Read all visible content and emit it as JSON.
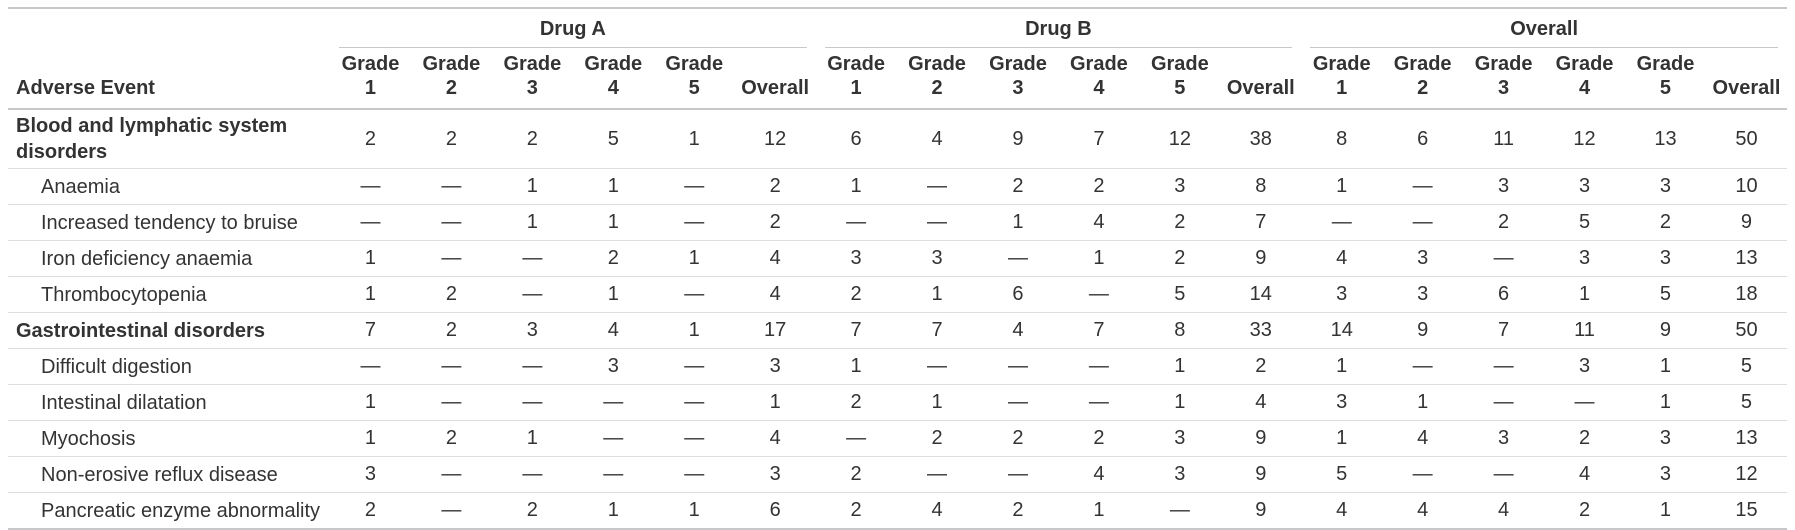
{
  "colors": {
    "text": "#333333",
    "border_strong": "#c6c8ca",
    "border_light": "#dcdee0"
  },
  "chart_data": {
    "type": "table",
    "row_header": "Adverse Event",
    "empty_value": "—",
    "column_groups": [
      {
        "label": "Drug A"
      },
      {
        "label": "Drug B"
      },
      {
        "label": "Overall"
      }
    ],
    "sub_columns": [
      {
        "top": "Grade",
        "bottom": "1"
      },
      {
        "top": "Grade",
        "bottom": "2"
      },
      {
        "top": "Grade",
        "bottom": "3"
      },
      {
        "top": "Grade",
        "bottom": "4"
      },
      {
        "top": "Grade",
        "bottom": "5"
      },
      {
        "top": "",
        "bottom": "Overall"
      }
    ],
    "rows": [
      {
        "label": "Blood and lymphatic system disorders",
        "bold": true,
        "indent": false,
        "drug_a": [
          "2",
          "2",
          "2",
          "5",
          "1",
          "12"
        ],
        "drug_b": [
          "6",
          "4",
          "9",
          "7",
          "12",
          "38"
        ],
        "overall": [
          "8",
          "6",
          "11",
          "12",
          "13",
          "50"
        ]
      },
      {
        "label": "Anaemia",
        "bold": false,
        "indent": true,
        "drug_a": [
          "—",
          "—",
          "1",
          "1",
          "—",
          "2"
        ],
        "drug_b": [
          "1",
          "—",
          "2",
          "2",
          "3",
          "8"
        ],
        "overall": [
          "1",
          "—",
          "3",
          "3",
          "3",
          "10"
        ]
      },
      {
        "label": "Increased tendency to bruise",
        "bold": false,
        "indent": true,
        "drug_a": [
          "—",
          "—",
          "1",
          "1",
          "—",
          "2"
        ],
        "drug_b": [
          "—",
          "—",
          "1",
          "4",
          "2",
          "7"
        ],
        "overall": [
          "—",
          "—",
          "2",
          "5",
          "2",
          "9"
        ]
      },
      {
        "label": "Iron deficiency anaemia",
        "bold": false,
        "indent": true,
        "drug_a": [
          "1",
          "—",
          "—",
          "2",
          "1",
          "4"
        ],
        "drug_b": [
          "3",
          "3",
          "—",
          "1",
          "2",
          "9"
        ],
        "overall": [
          "4",
          "3",
          "—",
          "3",
          "3",
          "13"
        ]
      },
      {
        "label": "Thrombocytopenia",
        "bold": false,
        "indent": true,
        "drug_a": [
          "1",
          "2",
          "—",
          "1",
          "—",
          "4"
        ],
        "drug_b": [
          "2",
          "1",
          "6",
          "—",
          "5",
          "14"
        ],
        "overall": [
          "3",
          "3",
          "6",
          "1",
          "5",
          "18"
        ]
      },
      {
        "label": "Gastrointestinal disorders",
        "bold": true,
        "indent": false,
        "drug_a": [
          "7",
          "2",
          "3",
          "4",
          "1",
          "17"
        ],
        "drug_b": [
          "7",
          "7",
          "4",
          "7",
          "8",
          "33"
        ],
        "overall": [
          "14",
          "9",
          "7",
          "11",
          "9",
          "50"
        ]
      },
      {
        "label": "Difficult digestion",
        "bold": false,
        "indent": true,
        "drug_a": [
          "—",
          "—",
          "—",
          "3",
          "—",
          "3"
        ],
        "drug_b": [
          "1",
          "—",
          "—",
          "—",
          "1",
          "2"
        ],
        "overall": [
          "1",
          "—",
          "—",
          "3",
          "1",
          "5"
        ]
      },
      {
        "label": "Intestinal dilatation",
        "bold": false,
        "indent": true,
        "drug_a": [
          "1",
          "—",
          "—",
          "—",
          "—",
          "1"
        ],
        "drug_b": [
          "2",
          "1",
          "—",
          "—",
          "1",
          "4"
        ],
        "overall": [
          "3",
          "1",
          "—",
          "—",
          "1",
          "5"
        ]
      },
      {
        "label": "Myochosis",
        "bold": false,
        "indent": true,
        "drug_a": [
          "1",
          "2",
          "1",
          "—",
          "—",
          "4"
        ],
        "drug_b": [
          "—",
          "2",
          "2",
          "2",
          "3",
          "9"
        ],
        "overall": [
          "1",
          "4",
          "3",
          "2",
          "3",
          "13"
        ]
      },
      {
        "label": "Non-erosive reflux disease",
        "bold": false,
        "indent": true,
        "drug_a": [
          "3",
          "—",
          "—",
          "—",
          "—",
          "3"
        ],
        "drug_b": [
          "2",
          "—",
          "—",
          "4",
          "3",
          "9"
        ],
        "overall": [
          "5",
          "—",
          "—",
          "4",
          "3",
          "12"
        ]
      },
      {
        "label": "Pancreatic enzyme abnormality",
        "bold": false,
        "indent": true,
        "drug_a": [
          "2",
          "—",
          "2",
          "1",
          "1",
          "6"
        ],
        "drug_b": [
          "2",
          "4",
          "2",
          "1",
          "—",
          "9"
        ],
        "overall": [
          "4",
          "4",
          "4",
          "2",
          "1",
          "15"
        ]
      }
    ]
  }
}
